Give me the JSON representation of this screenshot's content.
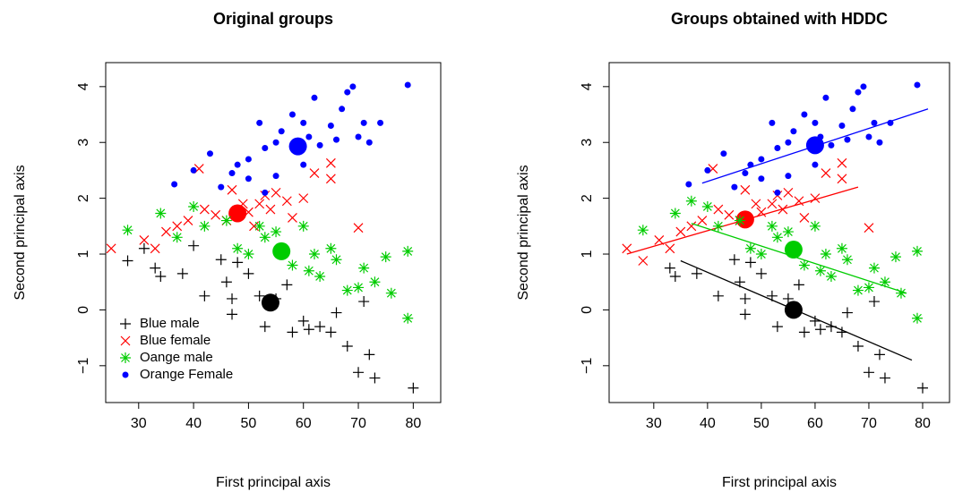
{
  "chart_data": [
    {
      "type": "scatter",
      "title": "Original groups",
      "xlabel": "First principal axis",
      "ylabel": "Second principal axis",
      "xlim": [
        24,
        85
      ],
      "ylim": [
        -1.66,
        4.43
      ],
      "xticks": [
        30,
        40,
        50,
        60,
        70,
        80
      ],
      "yticks": [
        {
          "value": -1,
          "label": "−1"
        },
        0,
        1,
        2,
        3,
        4
      ],
      "legend": "bottomleft",
      "series": [
        {
          "name": "Blue male",
          "color": "#000000",
          "marker": "plus",
          "x": [
            28,
            31,
            33,
            34,
            38,
            40,
            42,
            45,
            46,
            47,
            48,
            50,
            52,
            53,
            55,
            57,
            58,
            60,
            61,
            63,
            65,
            66,
            68,
            70,
            71,
            72,
            73,
            80,
            47
          ],
          "y": [
            0.88,
            1.1,
            0.75,
            0.6,
            0.65,
            1.15,
            0.25,
            0.9,
            0.5,
            0.2,
            0.85,
            0.65,
            0.25,
            -0.3,
            0.2,
            0.45,
            -0.4,
            -0.2,
            -0.35,
            -0.3,
            -0.4,
            -0.05,
            -0.65,
            -1.12,
            0.15,
            -0.8,
            -1.22,
            -1.4,
            -0.08
          ],
          "center": [
            54,
            0.13
          ]
        },
        {
          "name": "Blue female",
          "color": "#ff0000",
          "marker": "cross",
          "x": [
            25,
            31,
            33,
            35,
            37,
            39,
            41,
            42,
            44,
            46,
            47,
            49,
            50,
            52,
            53,
            54,
            55,
            57,
            58,
            60,
            62,
            65,
            65,
            70,
            51
          ],
          "y": [
            1.1,
            1.25,
            1.1,
            1.4,
            1.5,
            1.6,
            2.53,
            1.8,
            1.7,
            1.6,
            2.15,
            1.9,
            1.75,
            1.9,
            2.05,
            1.8,
            2.1,
            1.95,
            1.65,
            2.0,
            2.45,
            2.63,
            2.35,
            1.47,
            1.5
          ],
          "center": [
            48,
            1.73
          ]
        },
        {
          "name": "Oange male",
          "color": "#00cc00",
          "marker": "star",
          "x": [
            28,
            34,
            37,
            40,
            42,
            46,
            48,
            50,
            52,
            53,
            55,
            58,
            60,
            61,
            62,
            63,
            65,
            66,
            68,
            70,
            71,
            73,
            75,
            76,
            79,
            79
          ],
          "y": [
            1.43,
            1.73,
            1.3,
            1.85,
            1.5,
            1.6,
            1.1,
            1.0,
            1.5,
            1.3,
            1.4,
            0.8,
            1.5,
            0.7,
            1.0,
            0.6,
            1.1,
            0.9,
            0.35,
            0.4,
            0.75,
            0.5,
            0.95,
            0.3,
            1.05,
            -0.15
          ],
          "center": [
            56,
            1.05
          ]
        },
        {
          "name": "Orange Female",
          "color": "#0000ff",
          "marker": "dot",
          "x": [
            36.5,
            40,
            43,
            45,
            47,
            48,
            50,
            52,
            53,
            55,
            56,
            58,
            60,
            61,
            62,
            63,
            65,
            66,
            67,
            68,
            69,
            70,
            71,
            72,
            74,
            79,
            60,
            55,
            53,
            50
          ],
          "y": [
            2.25,
            2.5,
            2.8,
            2.2,
            2.45,
            2.6,
            2.7,
            3.35,
            2.9,
            3.0,
            3.2,
            3.5,
            3.35,
            3.1,
            3.8,
            2.95,
            3.3,
            3.05,
            3.6,
            3.9,
            4.0,
            3.1,
            3.35,
            3.0,
            3.35,
            4.03,
            2.6,
            2.4,
            2.1,
            2.35
          ],
          "center": [
            59,
            2.93
          ]
        }
      ]
    },
    {
      "type": "scatter",
      "title": "Groups obtained with HDDC",
      "xlabel": "First principal axis",
      "ylabel": "Second principal axis",
      "xlim": [
        21.7,
        85
      ],
      "ylim": [
        -1.66,
        4.43
      ],
      "xticks": [
        30,
        40,
        50,
        60,
        70,
        80
      ],
      "yticks": [
        {
          "value": -1,
          "label": "−1"
        },
        0,
        1,
        2,
        3,
        4
      ],
      "series": [
        {
          "color": "#000000",
          "marker": "plus",
          "x": [
            33,
            34,
            38,
            42,
            45,
            46,
            47,
            48,
            50,
            52,
            53,
            55,
            57,
            58,
            60,
            61,
            63,
            65,
            66,
            68,
            70,
            71,
            72,
            73,
            80,
            47
          ],
          "y": [
            0.75,
            0.6,
            0.65,
            0.25,
            0.9,
            0.5,
            0.2,
            0.85,
            0.65,
            0.25,
            -0.3,
            0.2,
            0.45,
            -0.4,
            -0.2,
            -0.35,
            -0.3,
            -0.4,
            -0.05,
            -0.65,
            -1.12,
            0.15,
            -0.8,
            -1.22,
            -1.4,
            -0.08
          ],
          "center": [
            56,
            0.0
          ],
          "line": {
            "x": [
              35,
              78
            ],
            "y": [
              0.88,
              -0.9
            ]
          }
        },
        {
          "color": "#ff0000",
          "marker": "cross",
          "x": [
            25,
            28,
            31,
            33,
            35,
            37,
            39,
            41,
            42,
            44,
            46,
            47,
            49,
            50,
            52,
            53,
            54,
            55,
            57,
            58,
            60,
            62,
            65,
            65,
            70
          ],
          "y": [
            1.1,
            0.88,
            1.25,
            1.1,
            1.4,
            1.5,
            1.6,
            2.53,
            1.8,
            1.7,
            1.6,
            2.15,
            1.9,
            1.75,
            1.9,
            2.05,
            1.8,
            2.1,
            1.95,
            1.65,
            2.0,
            2.45,
            2.63,
            2.35,
            1.47
          ],
          "center": [
            47,
            1.62
          ],
          "line": {
            "x": [
              25,
              68
            ],
            "y": [
              1.0,
              2.2
            ]
          }
        },
        {
          "color": "#00cc00",
          "marker": "star",
          "x": [
            28,
            34,
            37,
            40,
            42,
            46,
            48,
            50,
            52,
            53,
            55,
            58,
            60,
            61,
            62,
            63,
            65,
            66,
            68,
            70,
            71,
            73,
            75,
            76,
            79,
            79
          ],
          "y": [
            1.43,
            1.73,
            1.95,
            1.85,
            1.5,
            1.6,
            1.1,
            1.0,
            1.5,
            1.3,
            1.4,
            0.8,
            1.5,
            0.7,
            1.0,
            0.6,
            1.1,
            0.9,
            0.35,
            0.4,
            0.75,
            0.5,
            0.95,
            0.3,
            1.05,
            -0.15
          ],
          "center": [
            56,
            1.08
          ],
          "line": {
            "x": [
              37,
              77
            ],
            "y": [
              1.55,
              0.3
            ]
          }
        },
        {
          "color": "#0000ff",
          "marker": "dot",
          "x": [
            36.5,
            40,
            43,
            45,
            47,
            48,
            50,
            52,
            53,
            55,
            56,
            58,
            60,
            61,
            62,
            63,
            65,
            66,
            67,
            68,
            69,
            70,
            71,
            72,
            74,
            79,
            60,
            55,
            53,
            50
          ],
          "y": [
            2.25,
            2.5,
            2.8,
            2.2,
            2.45,
            2.6,
            2.7,
            3.35,
            2.9,
            3.0,
            3.2,
            3.5,
            3.35,
            3.1,
            3.8,
            2.95,
            3.3,
            3.05,
            3.6,
            3.9,
            4.0,
            3.1,
            3.35,
            3.0,
            3.35,
            4.03,
            2.6,
            2.4,
            2.1,
            2.35
          ],
          "center": [
            60,
            2.95
          ],
          "line": {
            "x": [
              39,
              81
            ],
            "y": [
              2.27,
              3.6
            ]
          }
        }
      ]
    }
  ]
}
